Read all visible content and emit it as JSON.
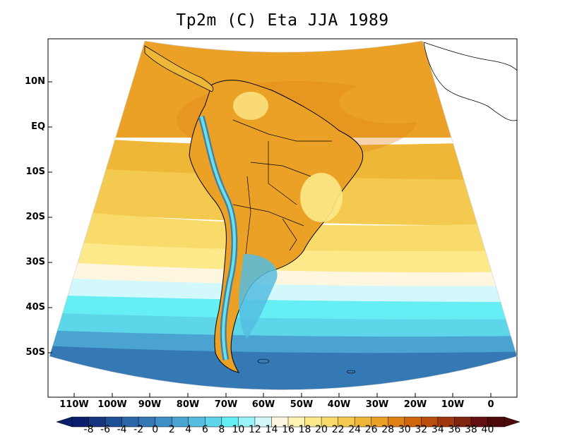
{
  "title": "Tp2m (C) Eta JJA 1989",
  "y_axis_labels": [
    "10N",
    "EQ",
    "10S",
    "20S",
    "30S",
    "40S",
    "50S"
  ],
  "x_axis_labels": [
    "110W",
    "100W",
    "90W",
    "80W",
    "70W",
    "60W",
    "50W",
    "40W",
    "30W",
    "20W",
    "10W",
    "0"
  ],
  "colorbar": {
    "labels": [
      "-8",
      "-6",
      "-4",
      "-2",
      "0",
      "2",
      "4",
      "6",
      "8",
      "10",
      "12",
      "14",
      "16",
      "18",
      "20",
      "22",
      "24",
      "26",
      "28",
      "30",
      "32",
      "34",
      "36",
      "38",
      "40"
    ],
    "colors": [
      "#0b1e6e",
      "#16357f",
      "#1f4f95",
      "#2a67a8",
      "#3479b4",
      "#3f8fc4",
      "#4aa3d1",
      "#55bde0",
      "#5ed6ea",
      "#66eef5",
      "#9af3f6",
      "#d2f8fb",
      "#fff6e0",
      "#fff3b2",
      "#fde98a",
      "#f8db6a",
      "#f3ca4f",
      "#eeb738",
      "#eba126",
      "#e08213",
      "#cf650c",
      "#b94d0c",
      "#9f380e",
      "#822510",
      "#641010",
      "#4c0a0a"
    ]
  }
}
